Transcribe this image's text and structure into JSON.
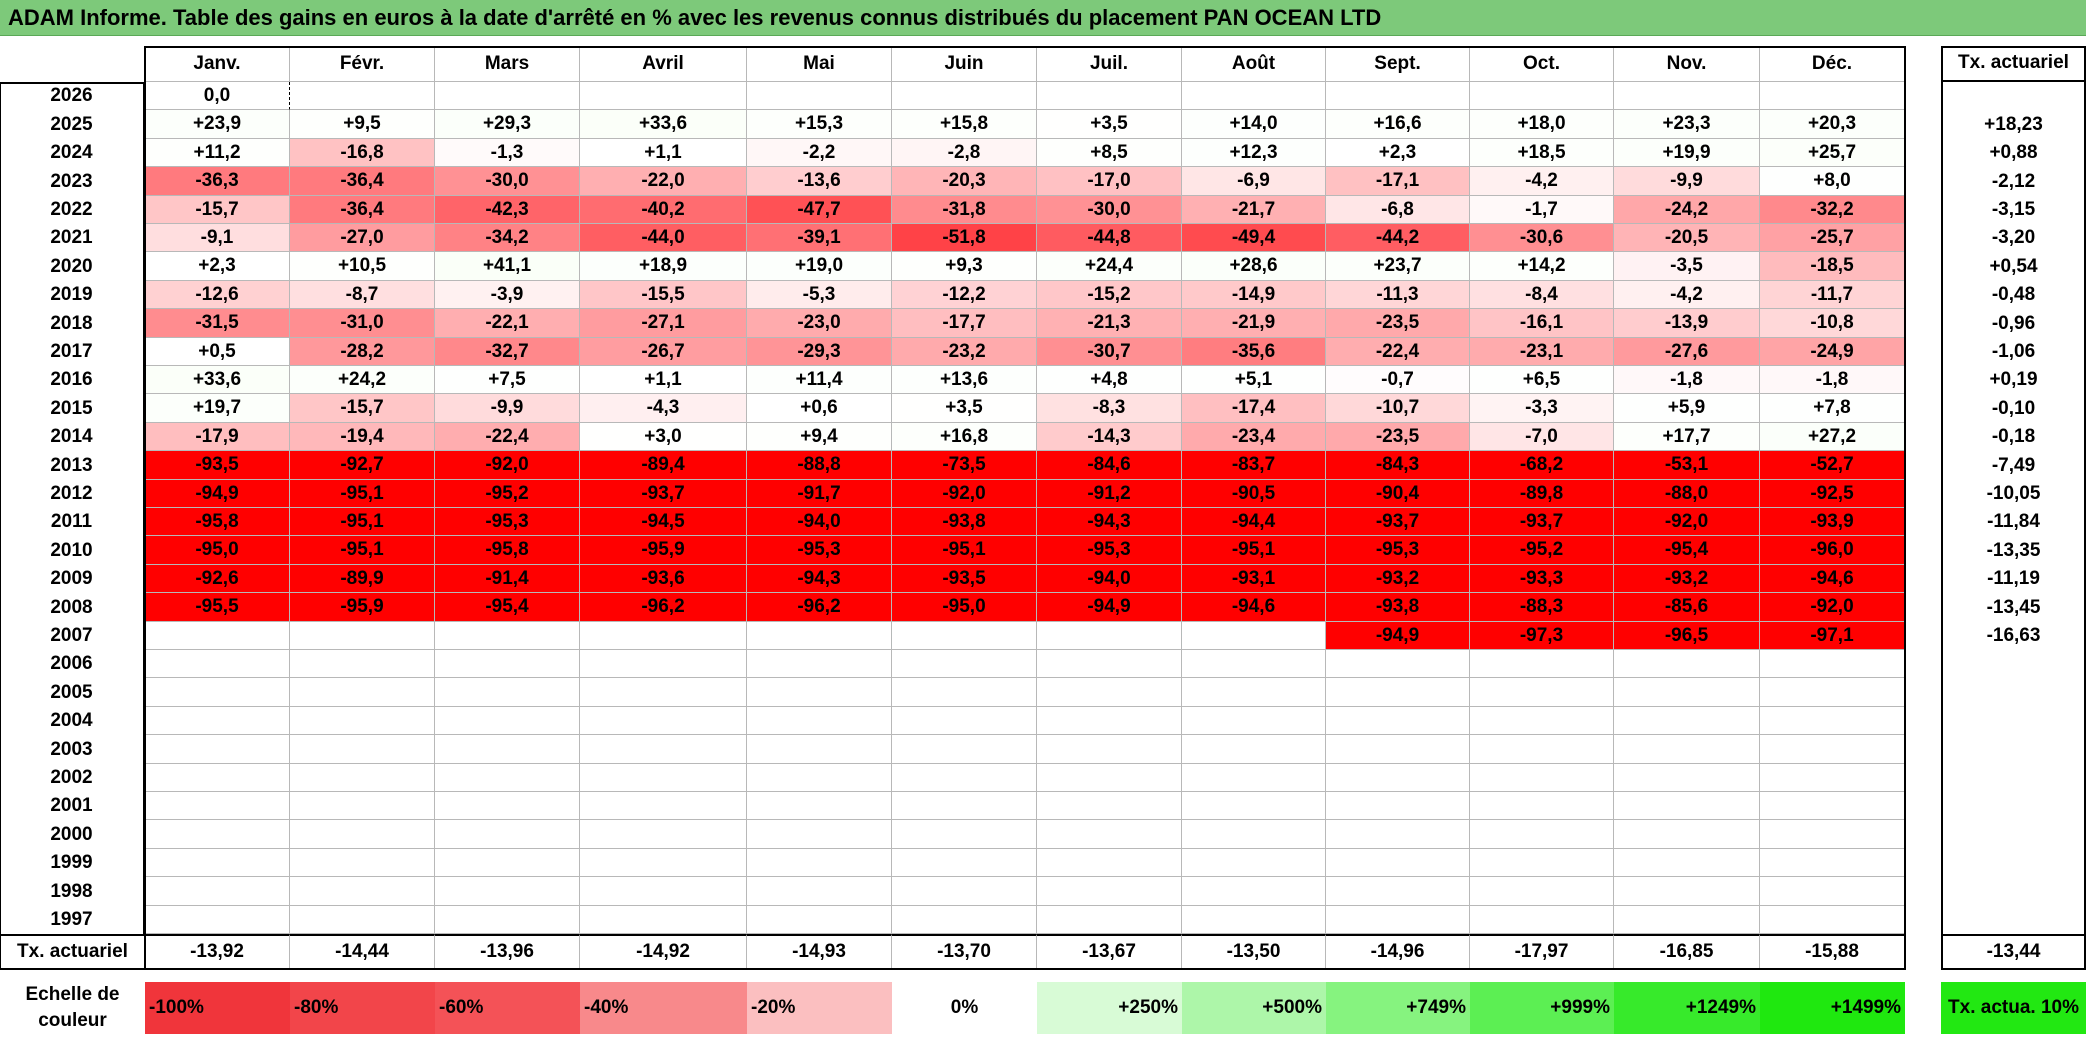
{
  "title": "ADAM Informe. Table des gains en euros à la date d'arrêté en % avec les revenus connus distribués du placement PAN OCEAN LTD",
  "months": [
    "Janv.",
    "Févr.",
    "Mars",
    "Avril",
    "Mai",
    "Juin",
    "Juil.",
    "Août",
    "Sept.",
    "Oct.",
    "Nov.",
    "Déc."
  ],
  "annual_header": "Tx. actuariel",
  "rows": [
    {
      "year": "2026",
      "values": [
        "0,0",
        "",
        "",
        "",
        "",
        "",
        "",
        "",
        "",
        "",
        "",
        ""
      ],
      "annual": ""
    },
    {
      "year": "2025",
      "values": [
        "+23,9",
        "+9,5",
        "+29,3",
        "+33,6",
        "+15,3",
        "+15,8",
        "+3,5",
        "+14,0",
        "+16,6",
        "+18,0",
        "+23,3",
        "+20,3"
      ],
      "annual": "+18,23"
    },
    {
      "year": "2024",
      "values": [
        "+11,2",
        "-16,8",
        "-1,3",
        "+1,1",
        "-2,2",
        "-2,8",
        "+8,5",
        "+12,3",
        "+2,3",
        "+18,5",
        "+19,9",
        "+25,7"
      ],
      "annual": "+0,88"
    },
    {
      "year": "2023",
      "values": [
        "-36,3",
        "-36,4",
        "-30,0",
        "-22,0",
        "-13,6",
        "-20,3",
        "-17,0",
        "-6,9",
        "-17,1",
        "-4,2",
        "-9,9",
        "+8,0"
      ],
      "annual": "-2,12"
    },
    {
      "year": "2022",
      "values": [
        "-15,7",
        "-36,4",
        "-42,3",
        "-40,2",
        "-47,7",
        "-31,8",
        "-30,0",
        "-21,7",
        "-6,8",
        "-1,7",
        "-24,2",
        "-32,2"
      ],
      "annual": "-3,15"
    },
    {
      "year": "2021",
      "values": [
        "-9,1",
        "-27,0",
        "-34,2",
        "-44,0",
        "-39,1",
        "-51,8",
        "-44,8",
        "-49,4",
        "-44,2",
        "-30,6",
        "-20,5",
        "-25,7"
      ],
      "annual": "-3,20"
    },
    {
      "year": "2020",
      "values": [
        "+2,3",
        "+10,5",
        "+41,1",
        "+18,9",
        "+19,0",
        "+9,3",
        "+24,4",
        "+28,6",
        "+23,7",
        "+14,2",
        "-3,5",
        "-18,5"
      ],
      "annual": "+0,54"
    },
    {
      "year": "2019",
      "values": [
        "-12,6",
        "-8,7",
        "-3,9",
        "-15,5",
        "-5,3",
        "-12,2",
        "-15,2",
        "-14,9",
        "-11,3",
        "-8,4",
        "-4,2",
        "-11,7"
      ],
      "annual": "-0,48"
    },
    {
      "year": "2018",
      "values": [
        "-31,5",
        "-31,0",
        "-22,1",
        "-27,1",
        "-23,0",
        "-17,7",
        "-21,3",
        "-21,9",
        "-23,5",
        "-16,1",
        "-13,9",
        "-10,8"
      ],
      "annual": "-0,96"
    },
    {
      "year": "2017",
      "values": [
        "+0,5",
        "-28,2",
        "-32,7",
        "-26,7",
        "-29,3",
        "-23,2",
        "-30,7",
        "-35,6",
        "-22,4",
        "-23,1",
        "-27,6",
        "-24,9"
      ],
      "annual": "-1,06"
    },
    {
      "year": "2016",
      "values": [
        "+33,6",
        "+24,2",
        "+7,5",
        "+1,1",
        "+11,4",
        "+13,6",
        "+4,8",
        "+5,1",
        "-0,7",
        "+6,5",
        "-1,8",
        "-1,8"
      ],
      "annual": "+0,19"
    },
    {
      "year": "2015",
      "values": [
        "+19,7",
        "-15,7",
        "-9,9",
        "-4,3",
        "+0,6",
        "+3,5",
        "-8,3",
        "-17,4",
        "-10,7",
        "-3,3",
        "+5,9",
        "+7,8"
      ],
      "annual": "-0,10"
    },
    {
      "year": "2014",
      "values": [
        "-17,9",
        "-19,4",
        "-22,4",
        "+3,0",
        "+9,4",
        "+16,8",
        "-14,3",
        "-23,4",
        "-23,5",
        "-7,0",
        "+17,7",
        "+27,2"
      ],
      "annual": "-0,18"
    },
    {
      "year": "2013",
      "values": [
        "-93,5",
        "-92,7",
        "-92,0",
        "-89,4",
        "-88,8",
        "-73,5",
        "-84,6",
        "-83,7",
        "-84,3",
        "-68,2",
        "-53,1",
        "-52,7"
      ],
      "annual": "-7,49"
    },
    {
      "year": "2012",
      "values": [
        "-94,9",
        "-95,1",
        "-95,2",
        "-93,7",
        "-91,7",
        "-92,0",
        "-91,2",
        "-90,5",
        "-90,4",
        "-89,8",
        "-88,0",
        "-92,5"
      ],
      "annual": "-10,05"
    },
    {
      "year": "2011",
      "values": [
        "-95,8",
        "-95,1",
        "-95,3",
        "-94,5",
        "-94,0",
        "-93,8",
        "-94,3",
        "-94,4",
        "-93,7",
        "-93,7",
        "-92,0",
        "-93,9"
      ],
      "annual": "-11,84"
    },
    {
      "year": "2010",
      "values": [
        "-95,0",
        "-95,1",
        "-95,8",
        "-95,9",
        "-95,3",
        "-95,1",
        "-95,3",
        "-95,1",
        "-95,3",
        "-95,2",
        "-95,4",
        "-96,0"
      ],
      "annual": "-13,35"
    },
    {
      "year": "2009",
      "values": [
        "-92,6",
        "-89,9",
        "-91,4",
        "-93,6",
        "-94,3",
        "-93,5",
        "-94,0",
        "-93,1",
        "-93,2",
        "-93,3",
        "-93,2",
        "-94,6"
      ],
      "annual": "-11,19"
    },
    {
      "year": "2008",
      "values": [
        "-95,5",
        "-95,9",
        "-95,4",
        "-96,2",
        "-96,2",
        "-95,0",
        "-94,9",
        "-94,6",
        "-93,8",
        "-88,3",
        "-85,6",
        "-92,0"
      ],
      "annual": "-13,45"
    },
    {
      "year": "2007",
      "values": [
        "",
        "",
        "",
        "",
        "",
        "",
        "",
        "",
        "-94,9",
        "-97,3",
        "-96,5",
        "-97,1"
      ],
      "annual": "-16,63"
    },
    {
      "year": "2006",
      "values": [
        "",
        "",
        "",
        "",
        "",
        "",
        "",
        "",
        "",
        "",
        "",
        ""
      ],
      "annual": ""
    },
    {
      "year": "2005",
      "values": [
        "",
        "",
        "",
        "",
        "",
        "",
        "",
        "",
        "",
        "",
        "",
        ""
      ],
      "annual": ""
    },
    {
      "year": "2004",
      "values": [
        "",
        "",
        "",
        "",
        "",
        "",
        "",
        "",
        "",
        "",
        "",
        ""
      ],
      "annual": ""
    },
    {
      "year": "2003",
      "values": [
        "",
        "",
        "",
        "",
        "",
        "",
        "",
        "",
        "",
        "",
        "",
        ""
      ],
      "annual": ""
    },
    {
      "year": "2002",
      "values": [
        "",
        "",
        "",
        "",
        "",
        "",
        "",
        "",
        "",
        "",
        "",
        ""
      ],
      "annual": ""
    },
    {
      "year": "2001",
      "values": [
        "",
        "",
        "",
        "",
        "",
        "",
        "",
        "",
        "",
        "",
        "",
        ""
      ],
      "annual": ""
    },
    {
      "year": "2000",
      "values": [
        "",
        "",
        "",
        "",
        "",
        "",
        "",
        "",
        "",
        "",
        "",
        ""
      ],
      "annual": ""
    },
    {
      "year": "1999",
      "values": [
        "",
        "",
        "",
        "",
        "",
        "",
        "",
        "",
        "",
        "",
        "",
        ""
      ],
      "annual": ""
    },
    {
      "year": "1998",
      "values": [
        "",
        "",
        "",
        "",
        "",
        "",
        "",
        "",
        "",
        "",
        "",
        ""
      ],
      "annual": ""
    },
    {
      "year": "1997",
      "values": [
        "",
        "",
        "",
        "",
        "",
        "",
        "",
        "",
        "",
        "",
        "",
        ""
      ],
      "annual": ""
    }
  ],
  "footer": {
    "label": "Tx. actuariel",
    "values": [
      "-13,92",
      "-14,44",
      "-13,96",
      "-14,92",
      "-14,93",
      "-13,70",
      "-13,67",
      "-13,50",
      "-14,96",
      "-17,97",
      "-16,85",
      "-15,88"
    ],
    "annual": "-13,44"
  },
  "legend": {
    "label": "Echelle de couleur",
    "items": [
      {
        "text": "-100%",
        "color": "#f0353b"
      },
      {
        "text": "-80%",
        "color": "#f2454a"
      },
      {
        "text": "-60%",
        "color": "#f45257"
      },
      {
        "text": "-40%",
        "color": "#f8898b"
      },
      {
        "text": "-20%",
        "color": "#fbbfc0"
      },
      {
        "text": "0%",
        "color": "#ffffff"
      },
      {
        "text": "+250%",
        "color": "#d8fbd6"
      },
      {
        "text": "+500%",
        "color": "#adf6a9"
      },
      {
        "text": "+749%",
        "color": "#86f37f"
      },
      {
        "text": "+999%",
        "color": "#5cef53"
      },
      {
        "text": "+1249%",
        "color": "#37ea2b"
      },
      {
        "text": "+1499%",
        "color": "#1fe80f"
      }
    ],
    "extra": {
      "text": "Tx. actua. 10%",
      "color": "#22e812"
    }
  }
}
